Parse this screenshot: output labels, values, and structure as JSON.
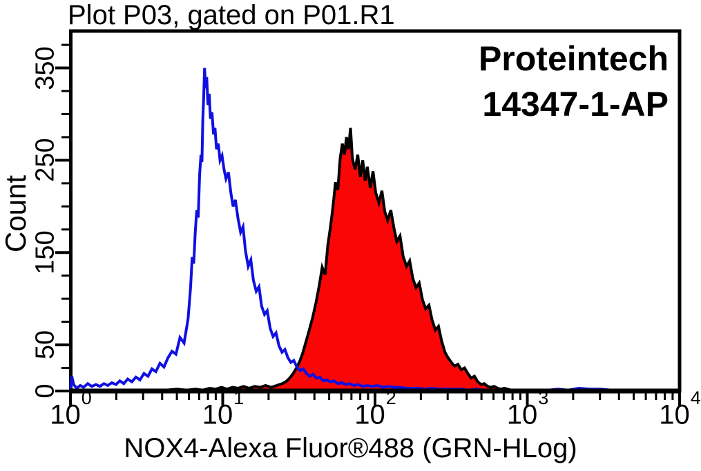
{
  "title": "Plot P03, gated on P01.R1",
  "annotation": {
    "line1": "Proteintech",
    "line2": "14347-1-AP"
  },
  "colors": {
    "control_line": "#1010e0",
    "sample_fill": "#fb0606",
    "sample_outline": "#000000",
    "axis": "#000000",
    "background": "#ffffff"
  },
  "chart_data": {
    "type": "line",
    "title": "Plot P03, gated on P01.R1",
    "xlabel": "NOX4-Alexa Fluor®488 (GRN-HLog)",
    "ylabel": "Count",
    "x_scale": "log10",
    "x_range": [
      1,
      10000
    ],
    "x_tick_exponents": [
      0,
      1,
      2,
      3,
      4
    ],
    "x_tick_base": "10",
    "x_minor_multiples": [
      2,
      3,
      4,
      5,
      6,
      7,
      8,
      9
    ],
    "y_range": [
      0,
      390
    ],
    "y_ticks_labeled": [
      0,
      50,
      150,
      250,
      350
    ],
    "y_tick_step": 25,
    "y_tick_max": 375,
    "grid": false,
    "legend_position": "none",
    "series": [
      {
        "name": "control-unstained (open blue histogram)",
        "color": "#1010e0",
        "fill": "none",
        "peak": {
          "x": 7.6,
          "count": 350
        },
        "points": [
          [
            1.0,
            2
          ],
          [
            1.02,
            16
          ],
          [
            1.05,
            7
          ],
          [
            1.1,
            3
          ],
          [
            1.16,
            6
          ],
          [
            1.22,
            4
          ],
          [
            1.3,
            8
          ],
          [
            1.38,
            5
          ],
          [
            1.47,
            7
          ],
          [
            1.56,
            5
          ],
          [
            1.66,
            8
          ],
          [
            1.76,
            6
          ],
          [
            1.87,
            9
          ],
          [
            1.99,
            7
          ],
          [
            2.11,
            11
          ],
          [
            2.24,
            8
          ],
          [
            2.38,
            13
          ],
          [
            2.53,
            10
          ],
          [
            2.69,
            15
          ],
          [
            2.86,
            12
          ],
          [
            3.04,
            19
          ],
          [
            3.23,
            16
          ],
          [
            3.43,
            24
          ],
          [
            3.64,
            21
          ],
          [
            3.87,
            30
          ],
          [
            4.11,
            26
          ],
          [
            4.37,
            36
          ],
          [
            4.64,
            43
          ],
          [
            4.93,
            40
          ],
          [
            5.24,
            58
          ],
          [
            5.57,
            52
          ],
          [
            5.92,
            78
          ],
          [
            6.0,
            90
          ],
          [
            6.15,
            112
          ],
          [
            6.3,
            145
          ],
          [
            6.45,
            138
          ],
          [
            6.6,
            172
          ],
          [
            6.75,
            196
          ],
          [
            6.9,
            188
          ],
          [
            7.05,
            234
          ],
          [
            7.2,
            256
          ],
          [
            7.3,
            248
          ],
          [
            7.4,
            295
          ],
          [
            7.5,
            320
          ],
          [
            7.6,
            350
          ],
          [
            7.72,
            328
          ],
          [
            7.85,
            340
          ],
          [
            8.0,
            310
          ],
          [
            8.15,
            322
          ],
          [
            8.3,
            295
          ],
          [
            8.5,
            302
          ],
          [
            8.7,
            278
          ],
          [
            8.9,
            285
          ],
          [
            9.1,
            262
          ],
          [
            9.35,
            268
          ],
          [
            9.6,
            250
          ],
          [
            9.9,
            255
          ],
          [
            10.2,
            240
          ],
          [
            10.5,
            230
          ],
          [
            10.9,
            237
          ],
          [
            11.3,
            215
          ],
          [
            11.7,
            200
          ],
          [
            12.1,
            207
          ],
          [
            12.6,
            187
          ],
          [
            13.1,
            172
          ],
          [
            13.6,
            178
          ],
          [
            14.1,
            152
          ],
          [
            14.7,
            135
          ],
          [
            15.3,
            142
          ],
          [
            15.9,
            120
          ],
          [
            16.6,
            108
          ],
          [
            17.3,
            113
          ],
          [
            18.0,
            92
          ],
          [
            18.8,
            83
          ],
          [
            19.6,
            87
          ],
          [
            20.5,
            68
          ],
          [
            21.4,
            59
          ],
          [
            22.4,
            63
          ],
          [
            23.4,
            49
          ],
          [
            24.5,
            42
          ],
          [
            25.6,
            45
          ],
          [
            26.8,
            36
          ],
          [
            28.0,
            31
          ],
          [
            29.3,
            33
          ],
          [
            30.7,
            26
          ],
          [
            32.2,
            22
          ],
          [
            33.8,
            24
          ],
          [
            35.5,
            19
          ],
          [
            37.3,
            16
          ],
          [
            39.2,
            18
          ],
          [
            41.2,
            14
          ],
          [
            43.4,
            15
          ],
          [
            45.7,
            11
          ],
          [
            48.2,
            12
          ],
          [
            50.9,
            10
          ],
          [
            53.8,
            11
          ],
          [
            57,
            8
          ],
          [
            60.5,
            9
          ],
          [
            64,
            7
          ],
          [
            68,
            8
          ],
          [
            72.5,
            6
          ],
          [
            77.5,
            7
          ],
          [
            83,
            5
          ],
          [
            89,
            6
          ],
          [
            96,
            5
          ],
          [
            104,
            6
          ],
          [
            113,
            4
          ],
          [
            123,
            5
          ],
          [
            134,
            4
          ],
          [
            147,
            4
          ],
          [
            161,
            3
          ],
          [
            177,
            3
          ],
          [
            195,
            3
          ],
          [
            215,
            2
          ],
          [
            238,
            3
          ],
          [
            264,
            2
          ],
          [
            294,
            2
          ],
          [
            328,
            2
          ],
          [
            367,
            2
          ],
          [
            412,
            1
          ],
          [
            464,
            2
          ],
          [
            524,
            1
          ],
          [
            594,
            1
          ],
          [
            676,
            1
          ],
          [
            772,
            1
          ],
          [
            886,
            1
          ],
          [
            1020,
            1
          ],
          [
            1178,
            1
          ],
          [
            1366,
            1
          ],
          [
            1590,
            2
          ],
          [
            1857,
            1
          ],
          [
            2176,
            3
          ],
          [
            2559,
            2
          ],
          [
            3020,
            2
          ],
          [
            3576,
            1
          ],
          [
            4249,
            1
          ],
          [
            5066,
            0
          ],
          [
            6062,
            0
          ],
          [
            7282,
            0
          ],
          [
            8780,
            0
          ],
          [
            10000,
            0
          ]
        ]
      },
      {
        "name": "NOX4-Alexa Fluor 488 stained (red filled histogram)",
        "color": "#000000",
        "fill": "#fb0606",
        "peak": {
          "x": 69,
          "count": 285
        },
        "points": [
          [
            1.0,
            0
          ],
          [
            1.5,
            0
          ],
          [
            2.0,
            1
          ],
          [
            2.5,
            0
          ],
          [
            3.0,
            1
          ],
          [
            3.5,
            0
          ],
          [
            4.2,
            1
          ],
          [
            5.0,
            2
          ],
          [
            5.8,
            1
          ],
          [
            6.6,
            2
          ],
          [
            7.4,
            1
          ],
          [
            8.2,
            3
          ],
          [
            9.0,
            2
          ],
          [
            9.8,
            4
          ],
          [
            10.7,
            2
          ],
          [
            11.6,
            4
          ],
          [
            12.6,
            3
          ],
          [
            13.7,
            5
          ],
          [
            14.9,
            3
          ],
          [
            16.2,
            5
          ],
          [
            17.6,
            4
          ],
          [
            19.1,
            6
          ],
          [
            20.8,
            4
          ],
          [
            22.6,
            6
          ],
          [
            24.6,
            8
          ],
          [
            26,
            10
          ],
          [
            27.5,
            14
          ],
          [
            29,
            19
          ],
          [
            30.5,
            25
          ],
          [
            32,
            32
          ],
          [
            33.5,
            41
          ],
          [
            35,
            52
          ],
          [
            37,
            66
          ],
          [
            39,
            80
          ],
          [
            41,
            96
          ],
          [
            43,
            114
          ],
          [
            45,
            134
          ],
          [
            47,
            126
          ],
          [
            49,
            158
          ],
          [
            51,
            178
          ],
          [
            53,
            200
          ],
          [
            55,
            226
          ],
          [
            57,
            218
          ],
          [
            59,
            252
          ],
          [
            61,
            268
          ],
          [
            63,
            256
          ],
          [
            65,
            275
          ],
          [
            67,
            262
          ],
          [
            69,
            285
          ],
          [
            71,
            252
          ],
          [
            74,
            240
          ],
          [
            77,
            256
          ],
          [
            80,
            232
          ],
          [
            83,
            250
          ],
          [
            86,
            228
          ],
          [
            89,
            243
          ],
          [
            93,
            220
          ],
          [
            97,
            238
          ],
          [
            101,
            215
          ],
          [
            106,
            204
          ],
          [
            111,
            217
          ],
          [
            116,
            194
          ],
          [
            121,
            185
          ],
          [
            127,
            196
          ],
          [
            133,
            177
          ],
          [
            139,
            162
          ],
          [
            146,
            168
          ],
          [
            153,
            146
          ],
          [
            161,
            135
          ],
          [
            169,
            141
          ],
          [
            177,
            122
          ],
          [
            186,
            112
          ],
          [
            195,
            117
          ],
          [
            205,
            99
          ],
          [
            215,
            89
          ],
          [
            226,
            93
          ],
          [
            237,
            77
          ],
          [
            249,
            66
          ],
          [
            261,
            70
          ],
          [
            274,
            54
          ],
          [
            288,
            42
          ],
          [
            302,
            36
          ],
          [
            317,
            31
          ],
          [
            333,
            27
          ],
          [
            350,
            29
          ],
          [
            368,
            23
          ],
          [
            387,
            25
          ],
          [
            407,
            19
          ],
          [
            428,
            14
          ],
          [
            450,
            16
          ],
          [
            473,
            10
          ],
          [
            497,
            7
          ],
          [
            522,
            8
          ],
          [
            549,
            5
          ],
          [
            577,
            4
          ],
          [
            607,
            5
          ],
          [
            638,
            3
          ],
          [
            671,
            2
          ],
          [
            706,
            3
          ],
          [
            743,
            2
          ],
          [
            781,
            1
          ],
          [
            822,
            1
          ],
          [
            864,
            1
          ],
          [
            909,
            1
          ],
          [
            956,
            0
          ],
          [
            1100,
            0
          ],
          [
            1500,
            0
          ],
          [
            2500,
            0
          ],
          [
            5000,
            0
          ],
          [
            10000,
            0
          ]
        ]
      }
    ]
  }
}
